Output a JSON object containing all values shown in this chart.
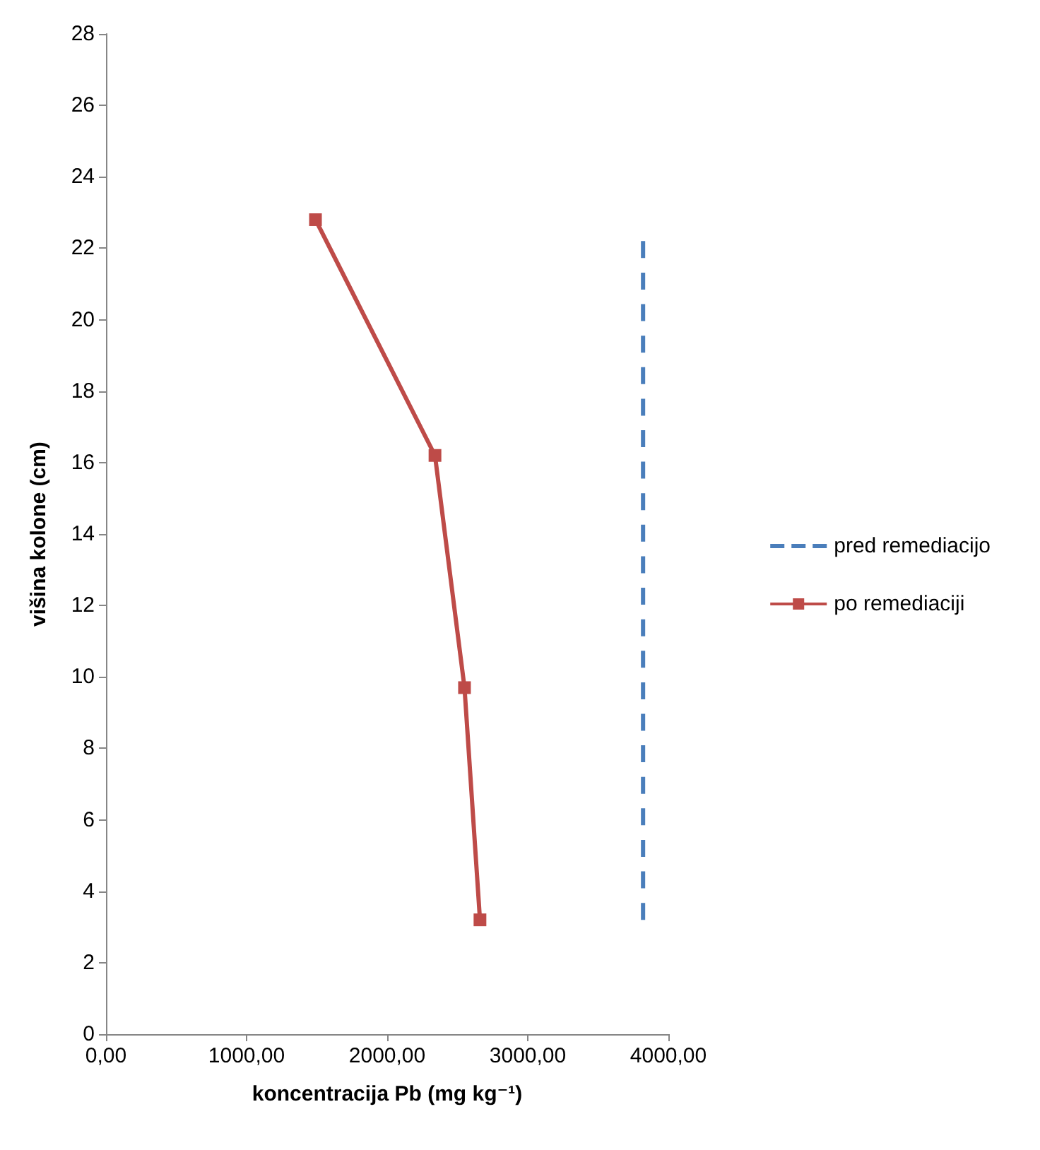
{
  "chart_data": {
    "type": "line",
    "xlabel": "koncentracija Pb (mg kg⁻¹)",
    "ylabel": "višina kolone (cm)",
    "xlim": [
      0,
      4000
    ],
    "xticks": [
      {
        "value": 0,
        "label": "0,00"
      },
      {
        "value": 1000,
        "label": "1000,00"
      },
      {
        "value": 2000,
        "label": "2000,00"
      },
      {
        "value": 3000,
        "label": "3000,00"
      },
      {
        "value": 4000,
        "label": "4000,00"
      }
    ],
    "ylim": [
      0,
      28
    ],
    "yticks": [
      0,
      2,
      4,
      6,
      8,
      10,
      12,
      14,
      16,
      18,
      20,
      22,
      24,
      26,
      28
    ],
    "grid": false,
    "legend": "right",
    "series": [
      {
        "name": "pred remediacijo",
        "color": "#4a7ebb",
        "x": [
          3820,
          3820
        ],
        "values": [
          3.2,
          22.2
        ],
        "line_style": "dashed",
        "marker": "none"
      },
      {
        "name": "po remediaciji",
        "color": "#be4b48",
        "x": [
          1490,
          2340,
          2550,
          2660
        ],
        "values": [
          22.8,
          16.2,
          9.7,
          3.2
        ],
        "line_style": "solid",
        "marker": "square"
      }
    ]
  }
}
